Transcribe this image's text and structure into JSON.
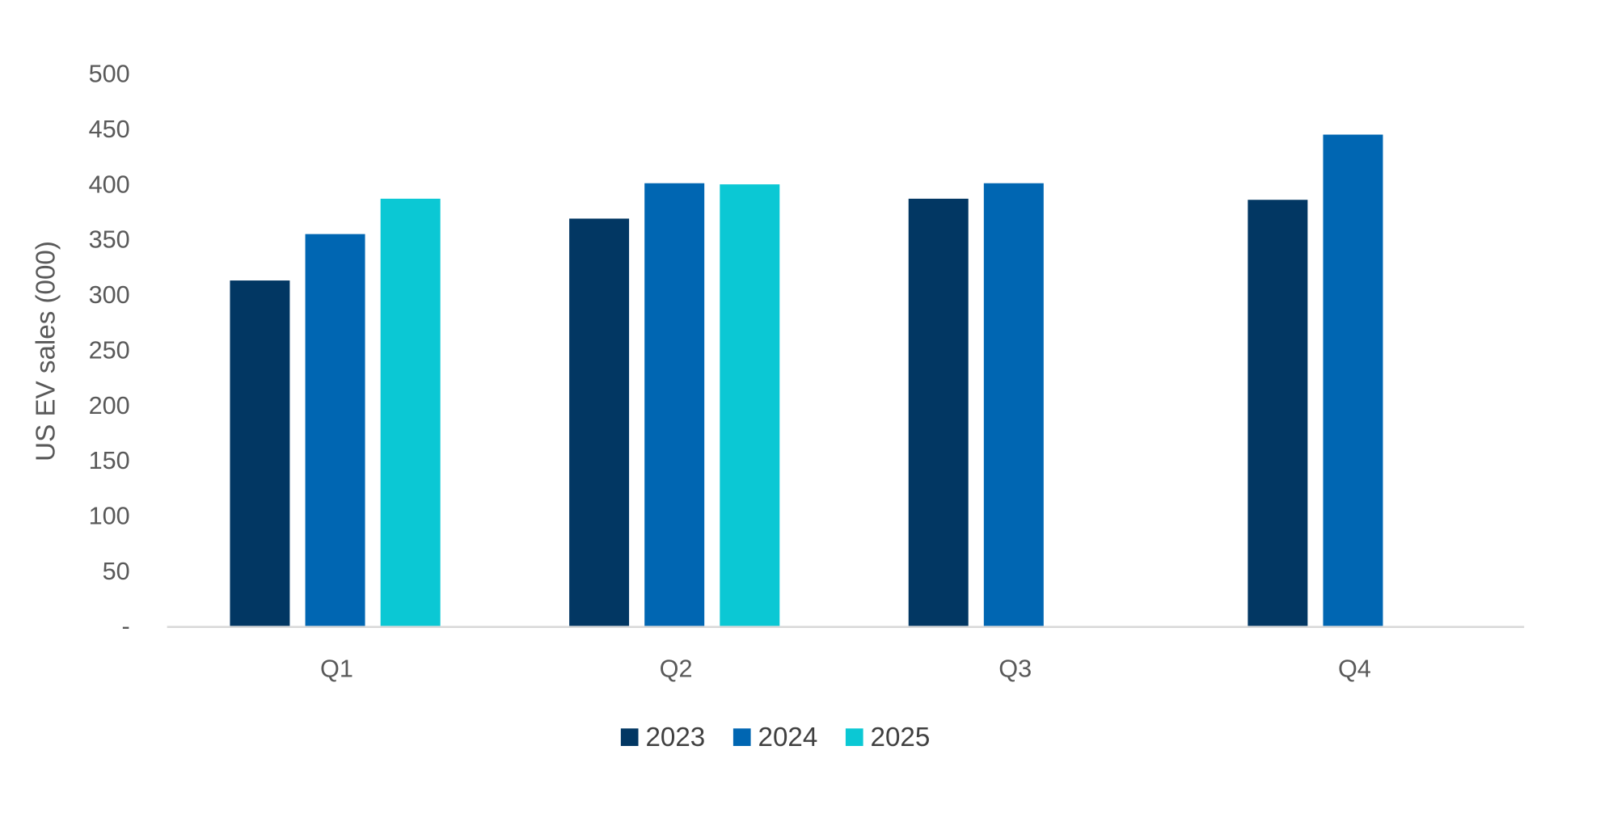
{
  "chart_data": {
    "type": "bar",
    "title": "",
    "xlabel": "",
    "ylabel": "US EV sales (000)",
    "categories": [
      "Q1",
      "Q2",
      "Q3",
      "Q4"
    ],
    "series": [
      {
        "name": "2023",
        "color": "#023763",
        "values": [
          313,
          369,
          387,
          386
        ]
      },
      {
        "name": "2024",
        "color": "#0066B2",
        "values": [
          355,
          401,
          401,
          445
        ]
      },
      {
        "name": "2025",
        "color": "#0BC8D4",
        "values": [
          387,
          400,
          null,
          null
        ]
      }
    ],
    "ylim": [
      0,
      500
    ],
    "yticks": [
      0,
      50,
      100,
      150,
      200,
      250,
      300,
      350,
      400,
      450,
      500
    ],
    "ytick_labels": [
      "-",
      "50",
      "100",
      "150",
      "200",
      "250",
      "300",
      "350",
      "400",
      "450",
      "500"
    ],
    "grid": false,
    "legend": "bottom-center"
  }
}
